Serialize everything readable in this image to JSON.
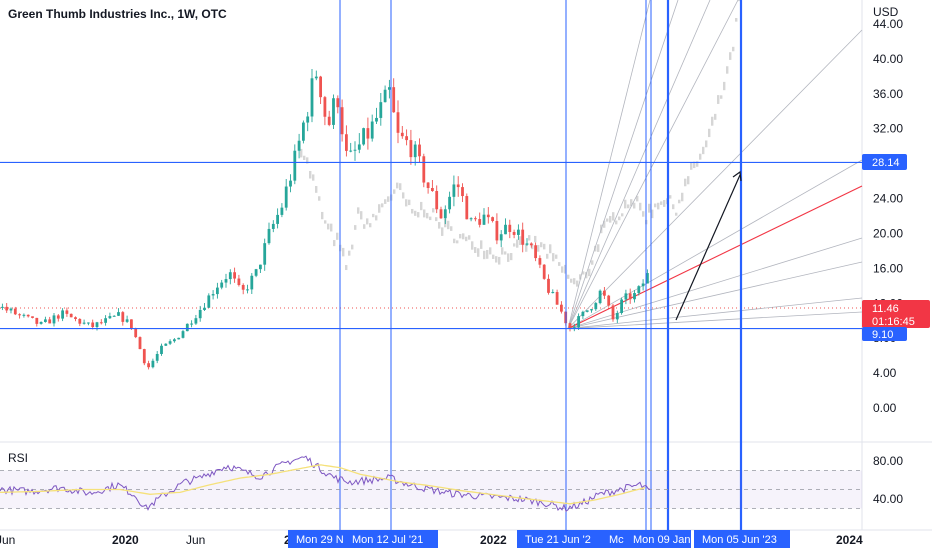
{
  "chart_data": {
    "type": "candlestick",
    "title": "Green Thumb Industries Inc., 1W, OTC",
    "y_axis": {
      "unit": "USD",
      "ticks": [
        "44.00",
        "40.00",
        "36.00",
        "32.00",
        "28.00",
        "24.00",
        "20.00",
        "16.00",
        "12.00",
        "8.00",
        "4.00",
        "0.00"
      ],
      "tick_values": [
        44,
        40,
        36,
        32,
        28,
        24,
        20,
        16,
        12,
        8,
        4,
        0
      ],
      "range": [
        -1.5,
        47.5
      ]
    },
    "x_axis": {
      "ticks": [
        "Jun",
        "2020",
        "Jun",
        "2",
        "2022",
        "2024"
      ]
    },
    "price_labels": {
      "h_line_upper": "28.14",
      "current_price": "11.46",
      "countdown": "01:16:45",
      "h_line_lower": "9.10"
    },
    "horizontal_lines": [
      28.14,
      9.1
    ],
    "date_labels": [
      "Mon 29 N",
      "Mon 12 Jul '21",
      "Tue 21 Jun '2",
      "Mc",
      "Mon 09 Jan",
      "Mon 05 Jun '23"
    ],
    "candle_anchors": [
      [
        0,
        11.5
      ],
      [
        40,
        9.5
      ],
      [
        60,
        10.8
      ],
      [
        90,
        9.3
      ],
      [
        118,
        10.6
      ],
      [
        130,
        9.4
      ],
      [
        146,
        4.5
      ],
      [
        160,
        6.8
      ],
      [
        175,
        8
      ],
      [
        200,
        11.5
      ],
      [
        215,
        14
      ],
      [
        228,
        15.5
      ],
      [
        240,
        13
      ],
      [
        255,
        15.5
      ],
      [
        268,
        20
      ],
      [
        280,
        23
      ],
      [
        295,
        29
      ],
      [
        305,
        34
      ],
      [
        316,
        39
      ],
      [
        326,
        32
      ],
      [
        336,
        36
      ],
      [
        346,
        28
      ],
      [
        358,
        30
      ],
      [
        370,
        32
      ],
      [
        388,
        36
      ],
      [
        396,
        31
      ],
      [
        410,
        30
      ],
      [
        428,
        25
      ],
      [
        440,
        22
      ],
      [
        455,
        26
      ],
      [
        470,
        21
      ],
      [
        482,
        22
      ],
      [
        495,
        20
      ],
      [
        510,
        21
      ],
      [
        530,
        18
      ],
      [
        545,
        14
      ],
      [
        560,
        11
      ],
      [
        568,
        9.1
      ],
      [
        580,
        10.5
      ],
      [
        592,
        12
      ],
      [
        600,
        13.5
      ],
      [
        612,
        10
      ],
      [
        622,
        12.5
      ],
      [
        635,
        13
      ],
      [
        650,
        16
      ]
    ],
    "shadow_anchors": [
      [
        300,
        30
      ],
      [
        312,
        26
      ],
      [
        324,
        21
      ],
      [
        336,
        19
      ],
      [
        346,
        16
      ],
      [
        356,
        22
      ],
      [
        370,
        21
      ],
      [
        385,
        24
      ],
      [
        398,
        25
      ],
      [
        412,
        22
      ],
      [
        424,
        23
      ],
      [
        438,
        21
      ],
      [
        452,
        20
      ],
      [
        466,
        19
      ],
      [
        480,
        18.5
      ],
      [
        495,
        17.5
      ],
      [
        512,
        18
      ],
      [
        530,
        19
      ],
      [
        545,
        18
      ],
      [
        560,
        16
      ],
      [
        575,
        14
      ],
      [
        588,
        16
      ],
      [
        600,
        20
      ],
      [
        615,
        22
      ],
      [
        630,
        24
      ],
      [
        645,
        22
      ],
      [
        660,
        24
      ],
      [
        675,
        23
      ],
      [
        690,
        27
      ],
      [
        705,
        30
      ],
      [
        718,
        35
      ],
      [
        725,
        38
      ],
      [
        730,
        40
      ],
      [
        735,
        44
      ],
      [
        740,
        48
      ]
    ],
    "rsi": {
      "label": "RSI",
      "ticks": [
        "80.00",
        "40.00"
      ],
      "tick_values": [
        80,
        40
      ],
      "range": [
        25,
        90
      ],
      "band": [
        30,
        70
      ],
      "rsi_anchors": [
        [
          0,
          50
        ],
        [
          30,
          48
        ],
        [
          60,
          52
        ],
        [
          90,
          46
        ],
        [
          118,
          55
        ],
        [
          135,
          44
        ],
        [
          146,
          30
        ],
        [
          165,
          45
        ],
        [
          185,
          58
        ],
        [
          200,
          62
        ],
        [
          215,
          70
        ],
        [
          228,
          75
        ],
        [
          245,
          68
        ],
        [
          260,
          64
        ],
        [
          275,
          72
        ],
        [
          290,
          80
        ],
        [
          305,
          84
        ],
        [
          320,
          72
        ],
        [
          335,
          62
        ],
        [
          350,
          58
        ],
        [
          370,
          60
        ],
        [
          390,
          62
        ],
        [
          410,
          55
        ],
        [
          430,
          50
        ],
        [
          450,
          46
        ],
        [
          470,
          44
        ],
        [
          495,
          42
        ],
        [
          520,
          40
        ],
        [
          545,
          36
        ],
        [
          565,
          30
        ],
        [
          580,
          34
        ],
        [
          600,
          45
        ],
        [
          620,
          50
        ],
        [
          640,
          55
        ],
        [
          650,
          48
        ]
      ],
      "ma_anchors": [
        [
          0,
          47
        ],
        [
          40,
          48
        ],
        [
          80,
          50
        ],
        [
          120,
          50
        ],
        [
          150,
          45
        ],
        [
          180,
          47
        ],
        [
          210,
          55
        ],
        [
          240,
          62
        ],
        [
          270,
          66
        ],
        [
          300,
          72
        ],
        [
          320,
          76
        ],
        [
          340,
          73
        ],
        [
          360,
          66
        ],
        [
          380,
          62
        ],
        [
          400,
          58
        ],
        [
          430,
          54
        ],
        [
          460,
          49
        ],
        [
          490,
          45
        ],
        [
          520,
          41
        ],
        [
          545,
          38
        ],
        [
          570,
          35
        ],
        [
          595,
          39
        ],
        [
          620,
          45
        ],
        [
          645,
          52
        ]
      ]
    },
    "colors": {
      "up": "#26a69a",
      "down": "#ef5350",
      "line_blue": "#2962ff",
      "fan_gray": "#b2b5be",
      "fan_red": "#f23645",
      "shadow": "#c8c8c8",
      "rsi": "#7e57c2",
      "rsi_ma": "#f5e17a",
      "arrow": "#131722"
    }
  }
}
